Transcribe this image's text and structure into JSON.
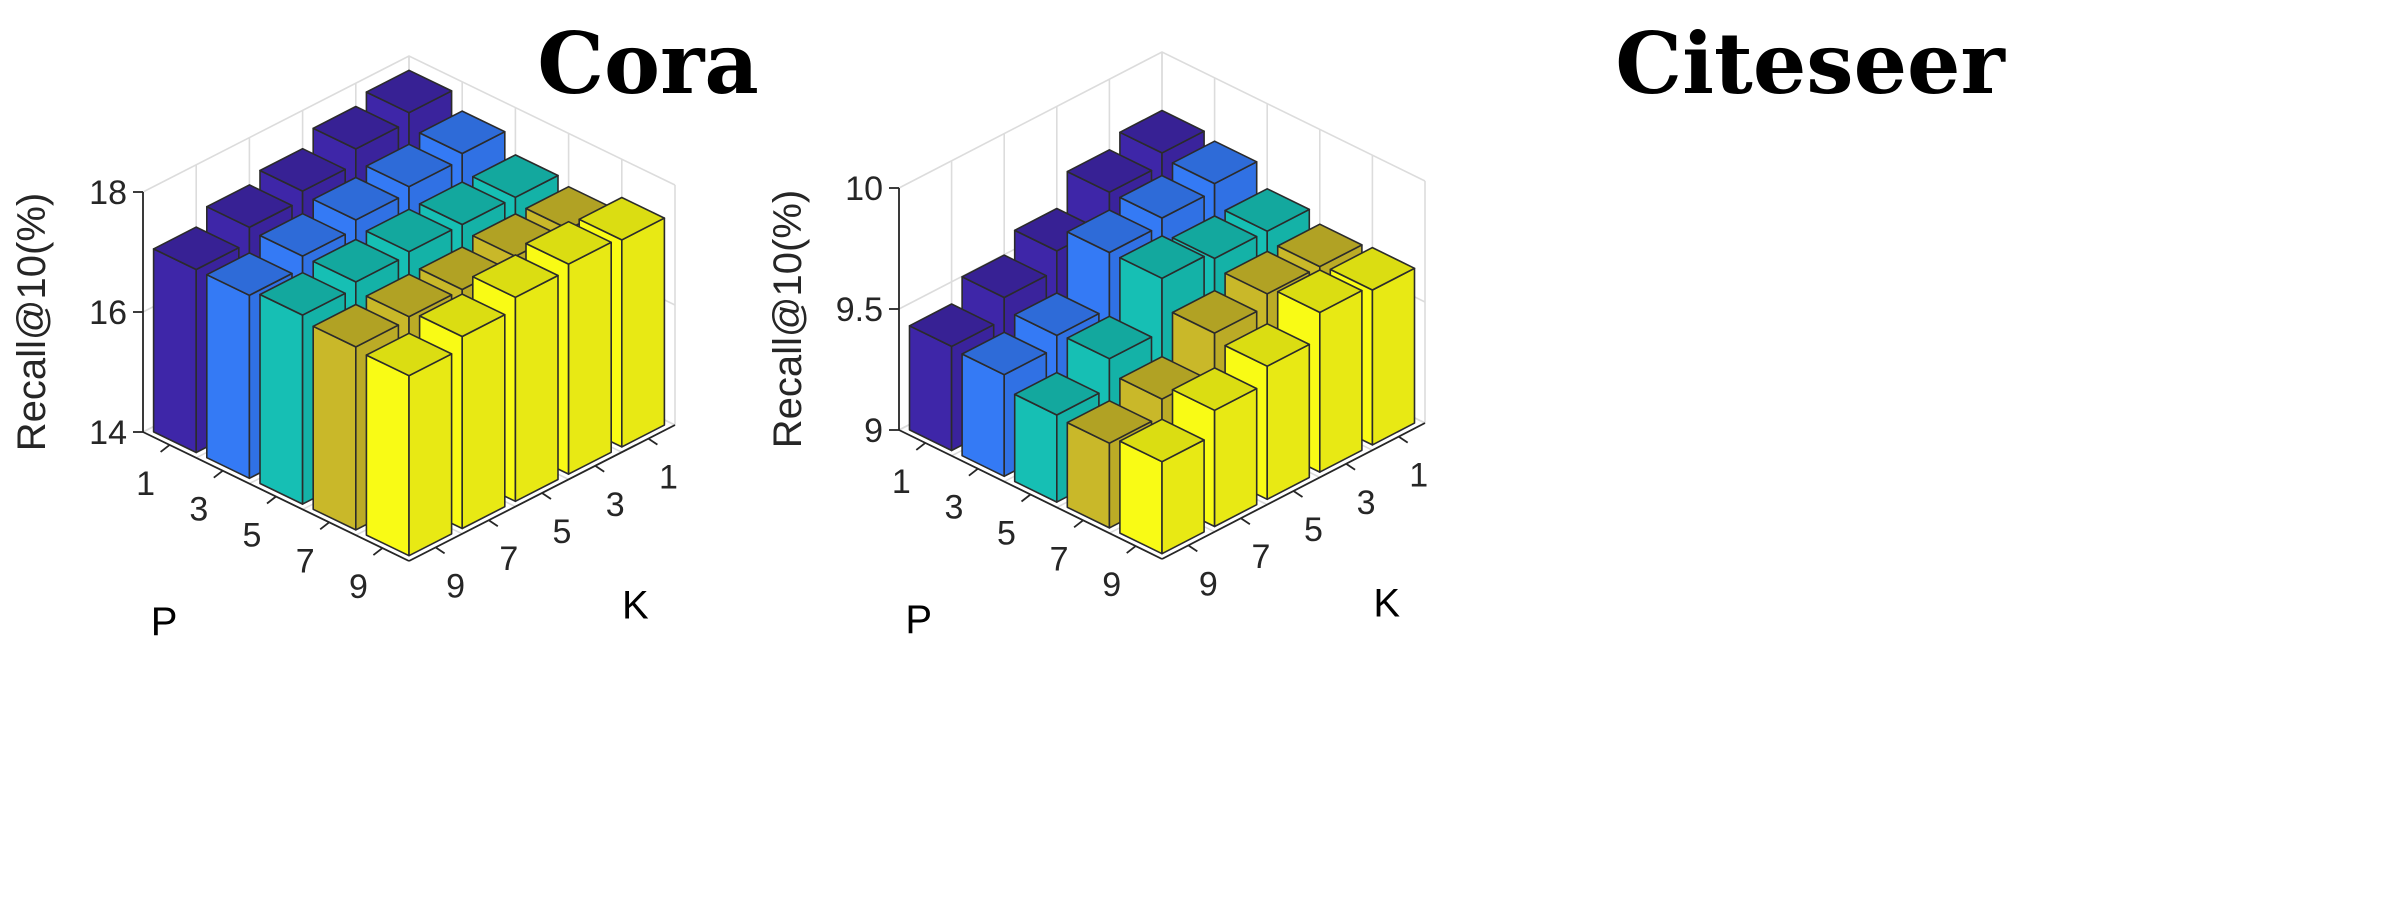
{
  "chart_data": [
    {
      "type": "bar3d",
      "title": "Cora",
      "xlabel": "P",
      "ylabel": "K",
      "zlabel": "Recall@10(%)",
      "p_values": [
        "1",
        "3",
        "5",
        "7",
        "9"
      ],
      "k_values": [
        "1",
        "3",
        "5",
        "7",
        "9"
      ],
      "zlim": [
        14,
        18
      ],
      "zticks": [
        "14",
        "16",
        "18"
      ],
      "grid": true,
      "values_by_P": [
        {
          "P": "1",
          "K1": 17.85,
          "K3": 17.7,
          "K5": 17.45,
          "K7": 17.3,
          "K9": 17.05
        },
        {
          "P": "3",
          "K1": 17.6,
          "K3": 17.5,
          "K5": 17.4,
          "K7": 17.25,
          "K9": 17.05
        },
        {
          "P": "5",
          "K1": 17.3,
          "K3": 17.3,
          "K5": 17.3,
          "K7": 17.25,
          "K9": 17.15
        },
        {
          "P": "7",
          "K1": 17.2,
          "K3": 17.2,
          "K5": 17.1,
          "K7": 17.1,
          "K9": 17.05
        },
        {
          "P": "9",
          "K1": 17.45,
          "K3": 17.5,
          "K5": 17.4,
          "K7": 17.2,
          "K9": 17.0
        }
      ]
    },
    {
      "type": "bar3d",
      "title": "Citeseer",
      "xlabel": "P",
      "ylabel": "K",
      "zlabel": "Recall@10(%)",
      "p_values": [
        "1",
        "3",
        "5",
        "7",
        "9"
      ],
      "k_values": [
        "1",
        "3",
        "5",
        "7",
        "9"
      ],
      "zlim": [
        9,
        10
      ],
      "zticks": [
        "9",
        "9.5",
        "10"
      ],
      "grid": true,
      "values_by_P": [
        {
          "P": "1",
          "K1": 9.78,
          "K3": 9.73,
          "K5": 9.6,
          "K7": 9.52,
          "K9": 9.43
        },
        {
          "P": "3",
          "K1": 9.76,
          "K3": 9.73,
          "K5": 9.7,
          "K7": 9.47,
          "K9": 9.42
        },
        {
          "P": "5",
          "K1": 9.67,
          "K3": 9.67,
          "K5": 9.7,
          "K7": 9.48,
          "K9": 9.36
        },
        {
          "P": "7",
          "K1": 9.63,
          "K3": 9.63,
          "K5": 9.58,
          "K7": 9.42,
          "K9": 9.35
        },
        {
          "P": "9",
          "K1": 9.64,
          "K3": 9.66,
          "K5": 9.55,
          "K7": 9.48,
          "K9": 9.38
        }
      ]
    }
  ],
  "colors": {
    "P1": "#3e26a8",
    "P3": "#347af5",
    "P5": "#16bfb4",
    "P7": "#c9b829",
    "P9": "#f9fb15"
  }
}
